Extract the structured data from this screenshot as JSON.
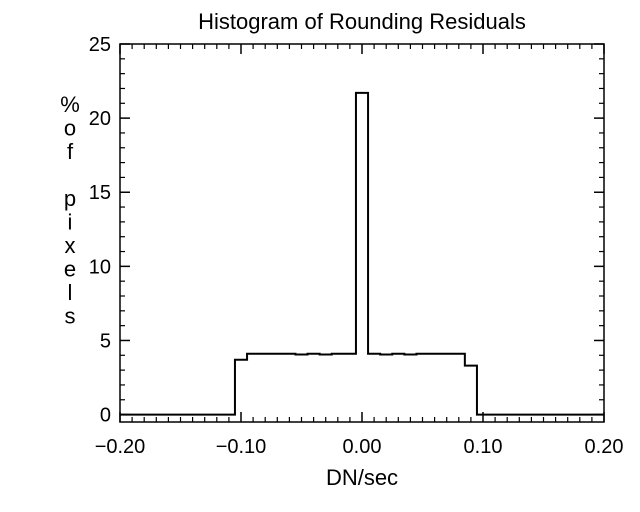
{
  "chart_data": {
    "type": "histogram",
    "title": "Histogram of Rounding Residuals",
    "xlabel": "DN/sec",
    "ylabel": "% of pixels",
    "ylabel_lines": [
      "%",
      "o",
      "f",
      "",
      "p",
      "i",
      "x",
      "e",
      "l",
      "s"
    ],
    "xlim": [
      -0.2,
      0.2
    ],
    "ylim": [
      -0.5,
      25
    ],
    "x_ticks": [
      -0.2,
      -0.1,
      0.0,
      0.1,
      0.2
    ],
    "x_tick_labels": [
      "−0.20",
      "−0.10",
      "0.00",
      "0.10",
      "0.20"
    ],
    "y_ticks": [
      0,
      5,
      10,
      15,
      20,
      25
    ],
    "y_tick_labels": [
      "0",
      "5",
      "10",
      "15",
      "20",
      "25"
    ],
    "grid": false,
    "series": [
      {
        "bins": [
          {
            "x0": -0.2,
            "x1": -0.105,
            "value": 0
          },
          {
            "x0": -0.105,
            "x1": -0.095,
            "value": 3.7
          },
          {
            "x0": -0.095,
            "x1": -0.055,
            "value": 4.1
          },
          {
            "x0": -0.055,
            "x1": -0.045,
            "value": 4.05
          },
          {
            "x0": -0.045,
            "x1": -0.035,
            "value": 4.1
          },
          {
            "x0": -0.035,
            "x1": -0.025,
            "value": 4.05
          },
          {
            "x0": -0.025,
            "x1": -0.005,
            "value": 4.1
          },
          {
            "x0": -0.005,
            "x1": 0.005,
            "value": 21.7
          },
          {
            "x0": 0.005,
            "x1": 0.015,
            "value": 4.1
          },
          {
            "x0": 0.015,
            "x1": 0.025,
            "value": 4.05
          },
          {
            "x0": 0.025,
            "x1": 0.035,
            "value": 4.1
          },
          {
            "x0": 0.035,
            "x1": 0.045,
            "value": 4.05
          },
          {
            "x0": 0.045,
            "x1": 0.085,
            "value": 4.1
          },
          {
            "x0": 0.085,
            "x1": 0.095,
            "value": 3.3
          },
          {
            "x0": 0.095,
            "x1": 0.2,
            "value": 0
          }
        ]
      }
    ]
  }
}
